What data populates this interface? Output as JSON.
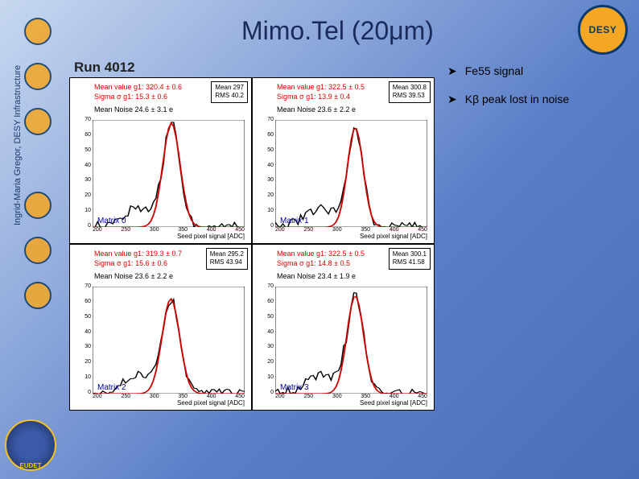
{
  "title": "Mimo.Tel (20μm)",
  "sidebar_author": "Ingrid-Maria Gregor, DESY Infrastructure",
  "run_label": "Run 4012",
  "desy_label": "DESY",
  "eudet_label": "EUDET",
  "bullets": [
    "Fe55 signal",
    "Kβ peak lost in noise"
  ],
  "plots": [
    {
      "matrix": "Matrix 0",
      "mean_value": "Mean value g1: 320.4 ± 0.6",
      "sigma": "Sigma σ g1: 15.3 ± 0.6",
      "mean_noise": "Mean Noise 24.6 ± 3.1 e",
      "stat_mean": "Mean    297",
      "stat_rms": "RMS     40.2",
      "xaxis": "Seed pixel signal [ADC]",
      "xlim": [
        180,
        450
      ],
      "ylim": [
        0,
        70
      ],
      "yticks": [
        "70",
        "60",
        "50",
        "40",
        "30",
        "20",
        "10",
        "0"
      ],
      "xticks": [
        "200",
        "250",
        "300",
        "350",
        "400",
        "450"
      ],
      "peak_x": 320,
      "sigma_val": 15.3,
      "peak_y": 68,
      "fit_color": "#cc0000",
      "line_color": "#000000",
      "bg": "#ffffff"
    },
    {
      "matrix": "Matrix 1",
      "mean_value": "Mean value g1: 322.5 ± 0.5",
      "sigma": "Sigma σ g1: 13.9 ± 0.4",
      "mean_noise": "Mean Noise 23.6 ± 2.2 e",
      "stat_mean": "Mean   300.8",
      "stat_rms": "RMS    39.53",
      "xaxis": "Seed pixel signal [ADC]",
      "xlim": [
        180,
        450
      ],
      "ylim": [
        0,
        70
      ],
      "yticks": [
        "70",
        "60",
        "50",
        "40",
        "30",
        "20",
        "10",
        "0"
      ],
      "xticks": [
        "200",
        "250",
        "300",
        "350",
        "400",
        "450"
      ],
      "peak_x": 322,
      "sigma_val": 13.9,
      "peak_y": 65,
      "fit_color": "#cc0000",
      "line_color": "#000000",
      "bg": "#ffffff"
    },
    {
      "matrix": "Matrix 2",
      "mean_value": "Mean value g1: 319.3 ± 0.7",
      "sigma": "Sigma σ g1: 15.6 ± 0.6",
      "mean_noise": "Mean Noise 23.6 ± 2.2 e",
      "stat_mean": "Mean   295.2",
      "stat_rms": "RMS    43.94",
      "xaxis": "Seed pixel signal [ADC]",
      "xlim": [
        180,
        450
      ],
      "ylim": [
        0,
        70
      ],
      "yticks": [
        "70",
        "60",
        "50",
        "40",
        "30",
        "20",
        "10",
        "0"
      ],
      "xticks": [
        "200",
        "250",
        "300",
        "350",
        "400",
        "450"
      ],
      "peak_x": 319,
      "sigma_val": 15.6,
      "peak_y": 62,
      "fit_color": "#cc0000",
      "line_color": "#000000",
      "bg": "#ffffff"
    },
    {
      "matrix": "Matrix 3",
      "mean_value": "Mean value g1: 322.5 ± 0.5",
      "sigma": "Sigma σ g1: 14.8 ± 0.5",
      "mean_noise": "Mean Noise 23.4 ± 1.9 e",
      "stat_mean": "Mean   300.1",
      "stat_rms": "RMS    41.58",
      "xaxis": "Seed pixel signal [ADC]",
      "xlim": [
        180,
        450
      ],
      "ylim": [
        0,
        70
      ],
      "yticks": [
        "70",
        "60",
        "50",
        "40",
        "30",
        "20",
        "10",
        "0"
      ],
      "xticks": [
        "200",
        "250",
        "300",
        "350",
        "400",
        "450"
      ],
      "peak_x": 322,
      "sigma_val": 14.8,
      "peak_y": 64,
      "fit_color": "#cc0000",
      "line_color": "#000000",
      "bg": "#ffffff"
    }
  ]
}
